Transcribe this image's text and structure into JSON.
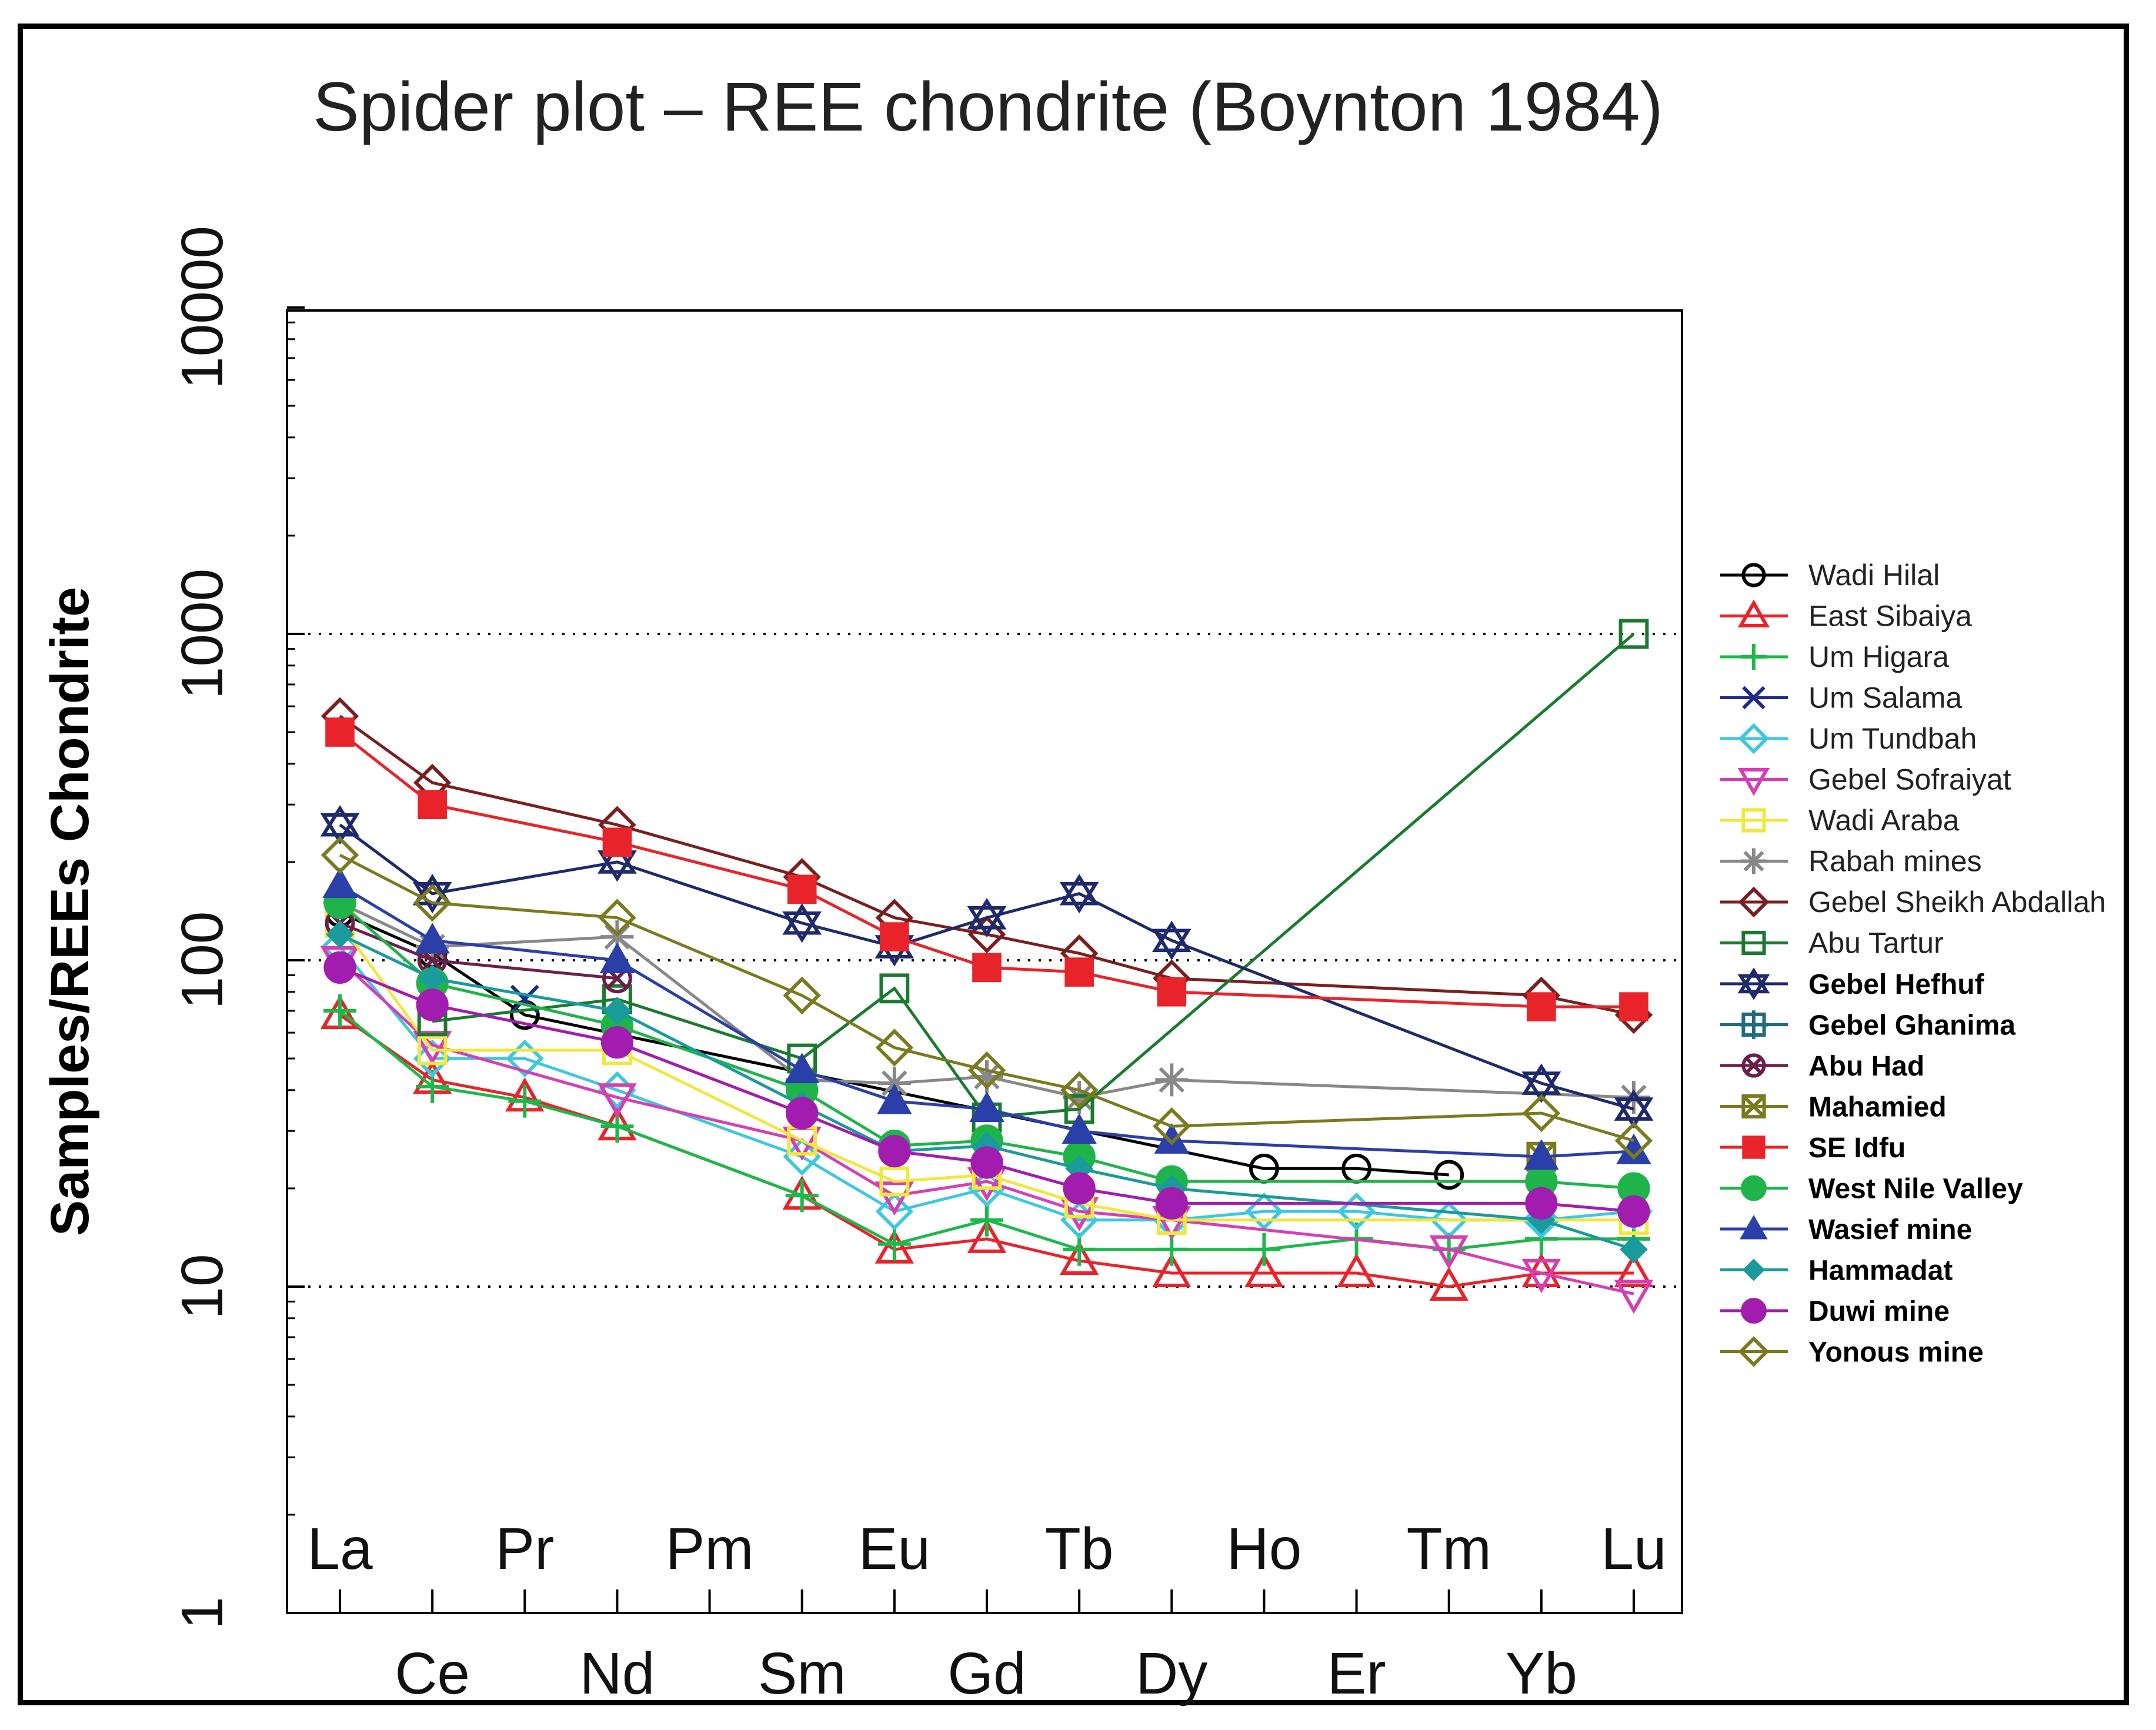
{
  "chart_data": {
    "type": "line",
    "title": "Spider plot – REE chondrite (Boynton 1984)",
    "ylabel": "Samples/REEs Chondrite",
    "xlabel": "",
    "yscale": "log",
    "ylim": [
      1,
      10000
    ],
    "y_ticks": [
      "1",
      "10",
      "100",
      "1000",
      "10000"
    ],
    "gridlines": "dotted at 10, 100, 1000",
    "legend_position": "right",
    "categories": [
      "La",
      "Ce",
      "Pr",
      "Nd",
      "Pm",
      "Sm",
      "Eu",
      "Gd",
      "Tb",
      "Dy",
      "Ho",
      "Er",
      "Tm",
      "Yb",
      "Lu"
    ],
    "upper_labels": [
      "La",
      "Pr",
      "Pm",
      "Eu",
      "Tb",
      "Ho",
      "Tm",
      "Lu"
    ],
    "lower_labels": [
      "Ce",
      "Nd",
      "Sm",
      "Gd",
      "Dy",
      "Er",
      "Yb"
    ],
    "series": [
      {
        "name": "Wadi Hilal",
        "color": "#000000",
        "marker": "circle",
        "values": [
          140,
          105,
          68,
          null,
          null,
          null,
          null,
          null,
          null,
          null,
          23,
          23,
          22,
          null,
          null
        ]
      },
      {
        "name": "East Sibaiya",
        "color": "#e8232a",
        "marker": "triangle",
        "values": [
          68,
          43,
          38,
          31,
          null,
          19,
          13,
          14,
          12,
          11,
          11,
          11,
          10,
          11,
          11
        ]
      },
      {
        "name": "Um Higara",
        "color": "#1cb84a",
        "marker": "plus",
        "values": [
          70,
          41,
          37,
          31,
          null,
          19,
          13.5,
          16,
          13,
          13,
          13,
          14,
          13,
          14,
          14
        ]
      },
      {
        "name": "Um Salama",
        "color": "#1e2a8c",
        "marker": "x",
        "values": [
          null,
          null,
          76,
          null,
          null,
          null,
          null,
          null,
          null,
          null,
          null,
          null,
          null,
          null,
          null
        ]
      },
      {
        "name": "Um Tundbah",
        "color": "#3ec7e0",
        "marker": "diamond",
        "values": [
          110,
          50,
          50,
          40,
          null,
          25,
          17,
          20,
          16,
          16,
          17,
          17,
          16,
          16,
          17
        ]
      },
      {
        "name": "Gebel Sofraiyat",
        "color": "#d63fb3",
        "marker": "triangle-down",
        "values": [
          100,
          55,
          null,
          38,
          null,
          28,
          19,
          21,
          17,
          16,
          null,
          null,
          13,
          11,
          9.5
        ]
      },
      {
        "name": "Wadi Araba",
        "color": "#f2e640",
        "marker": "square",
        "values": [
          130,
          53,
          null,
          53,
          null,
          28,
          21,
          22,
          18,
          16,
          null,
          null,
          null,
          null,
          16
        ]
      },
      {
        "name": "Rabah mines",
        "color": "#888888",
        "marker": "star",
        "values": [
          150,
          110,
          null,
          118,
          null,
          43,
          42,
          44,
          38,
          43,
          null,
          null,
          null,
          null,
          38
        ]
      },
      {
        "name": "Gebel Sheikh Abdallah",
        "color": "#7a1f1f",
        "marker": "diamond",
        "values": [
          560,
          350,
          null,
          260,
          null,
          180,
          135,
          120,
          105,
          88,
          null,
          null,
          null,
          78,
          68
        ]
      },
      {
        "name": "Abu Tartur",
        "color": "#1a7a30",
        "marker": "square",
        "values": [
          null,
          65,
          null,
          76,
          null,
          50,
          82,
          33,
          35,
          null,
          null,
          null,
          null,
          null,
          1000
        ]
      },
      {
        "name": "Gebel Hefhuf",
        "color": "#1e2a6b",
        "marker": "hexagram",
        "values": [
          260,
          160,
          null,
          200,
          null,
          130,
          110,
          135,
          160,
          115,
          null,
          null,
          null,
          42,
          35
        ]
      },
      {
        "name": "Gebel Ghanima",
        "color": "#1f6b7a",
        "marker": "square-plus",
        "values": [
          null,
          null,
          null,
          null,
          null,
          null,
          null,
          null,
          null,
          null,
          null,
          null,
          null,
          null,
          null
        ]
      },
      {
        "name": "Abu Had",
        "color": "#6b1f4a",
        "marker": "circle-x",
        "values": [
          130,
          100,
          null,
          88,
          null,
          null,
          null,
          null,
          null,
          null,
          null,
          null,
          null,
          null,
          null
        ]
      },
      {
        "name": "Mahamied",
        "color": "#7a7a1f",
        "marker": "square-x",
        "values": [
          null,
          null,
          null,
          null,
          null,
          null,
          null,
          null,
          null,
          null,
          null,
          null,
          null,
          25,
          null
        ]
      },
      {
        "name": "SE Idfu",
        "color": "#e8232a",
        "marker": "filled-square",
        "values": [
          500,
          300,
          null,
          230,
          null,
          165,
          118,
          95,
          92,
          80,
          null,
          null,
          null,
          72,
          72
        ]
      },
      {
        "name": "West Nile Valley",
        "color": "#1fb44a",
        "marker": "filled-circle",
        "values": [
          150,
          85,
          null,
          63,
          null,
          40,
          27,
          28,
          25,
          21,
          null,
          null,
          null,
          21,
          20
        ]
      },
      {
        "name": "Wasief mine",
        "color": "#2a3fa8",
        "marker": "filled-triangle",
        "values": [
          170,
          115,
          null,
          100,
          null,
          46,
          37,
          35,
          30,
          28,
          null,
          null,
          null,
          25,
          26
        ]
      },
      {
        "name": "Hammadat",
        "color": "#1a9a9a",
        "marker": "filled-diamond",
        "values": [
          120,
          88,
          null,
          70,
          null,
          36,
          26,
          27,
          23,
          20,
          null,
          null,
          null,
          16,
          13
        ]
      },
      {
        "name": "Duwi mine",
        "color": "#a21caf",
        "marker": "filled-circle",
        "values": [
          95,
          73,
          null,
          56,
          null,
          34,
          26,
          24,
          20,
          18,
          null,
          null,
          null,
          18,
          17
        ]
      },
      {
        "name": "Yonous mine",
        "color": "#7a7a1f",
        "marker": "diamond",
        "values": [
          210,
          150,
          null,
          135,
          null,
          78,
          54,
          46,
          40,
          31,
          null,
          null,
          null,
          34,
          28
        ]
      }
    ]
  }
}
